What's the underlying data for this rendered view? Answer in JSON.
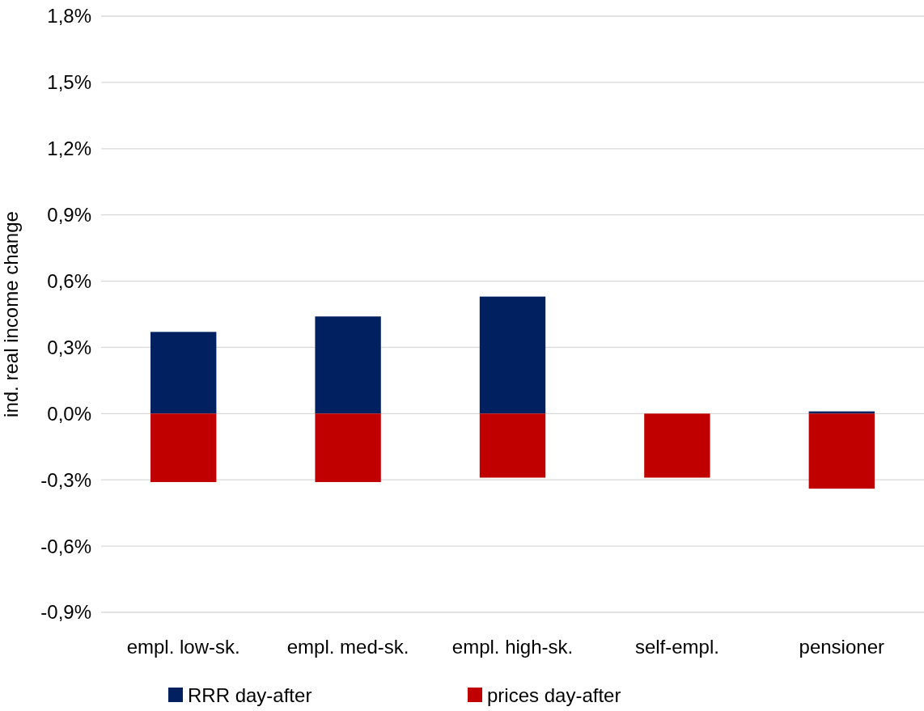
{
  "chart_data": {
    "type": "bar",
    "stacked": true,
    "ylabel": "ind. real income change",
    "categories": [
      "empl. low-sk.",
      "empl. med-sk.",
      "empl. high-sk.",
      "self-empl.",
      "pensioner"
    ],
    "series": [
      {
        "name": "RRR day-after",
        "color": "#002060",
        "values": [
          0.37,
          0.44,
          0.53,
          0,
          0.01
        ]
      },
      {
        "name": "prices day-after",
        "color": "#c00000",
        "values": [
          -0.31,
          -0.31,
          -0.29,
          -0.29,
          -0.34
        ]
      }
    ],
    "ylim": [
      -0.9,
      1.8
    ],
    "yticks": [
      {
        "value": -0.9,
        "label": "-0,9%"
      },
      {
        "value": -0.6,
        "label": "-0,6%"
      },
      {
        "value": -0.3,
        "label": "-0,3%"
      },
      {
        "value": 0,
        "label": "0,0%"
      },
      {
        "value": 0.3,
        "label": "0,3%"
      },
      {
        "value": 0.6,
        "label": "0,6%"
      },
      {
        "value": 0.9,
        "label": "0,9%"
      },
      {
        "value": 1.2,
        "label": "1,2%"
      },
      {
        "value": 1.5,
        "label": "1,5%"
      },
      {
        "value": 1.8,
        "label": "1,8%"
      }
    ],
    "grid": "y",
    "legend": "bottom"
  }
}
